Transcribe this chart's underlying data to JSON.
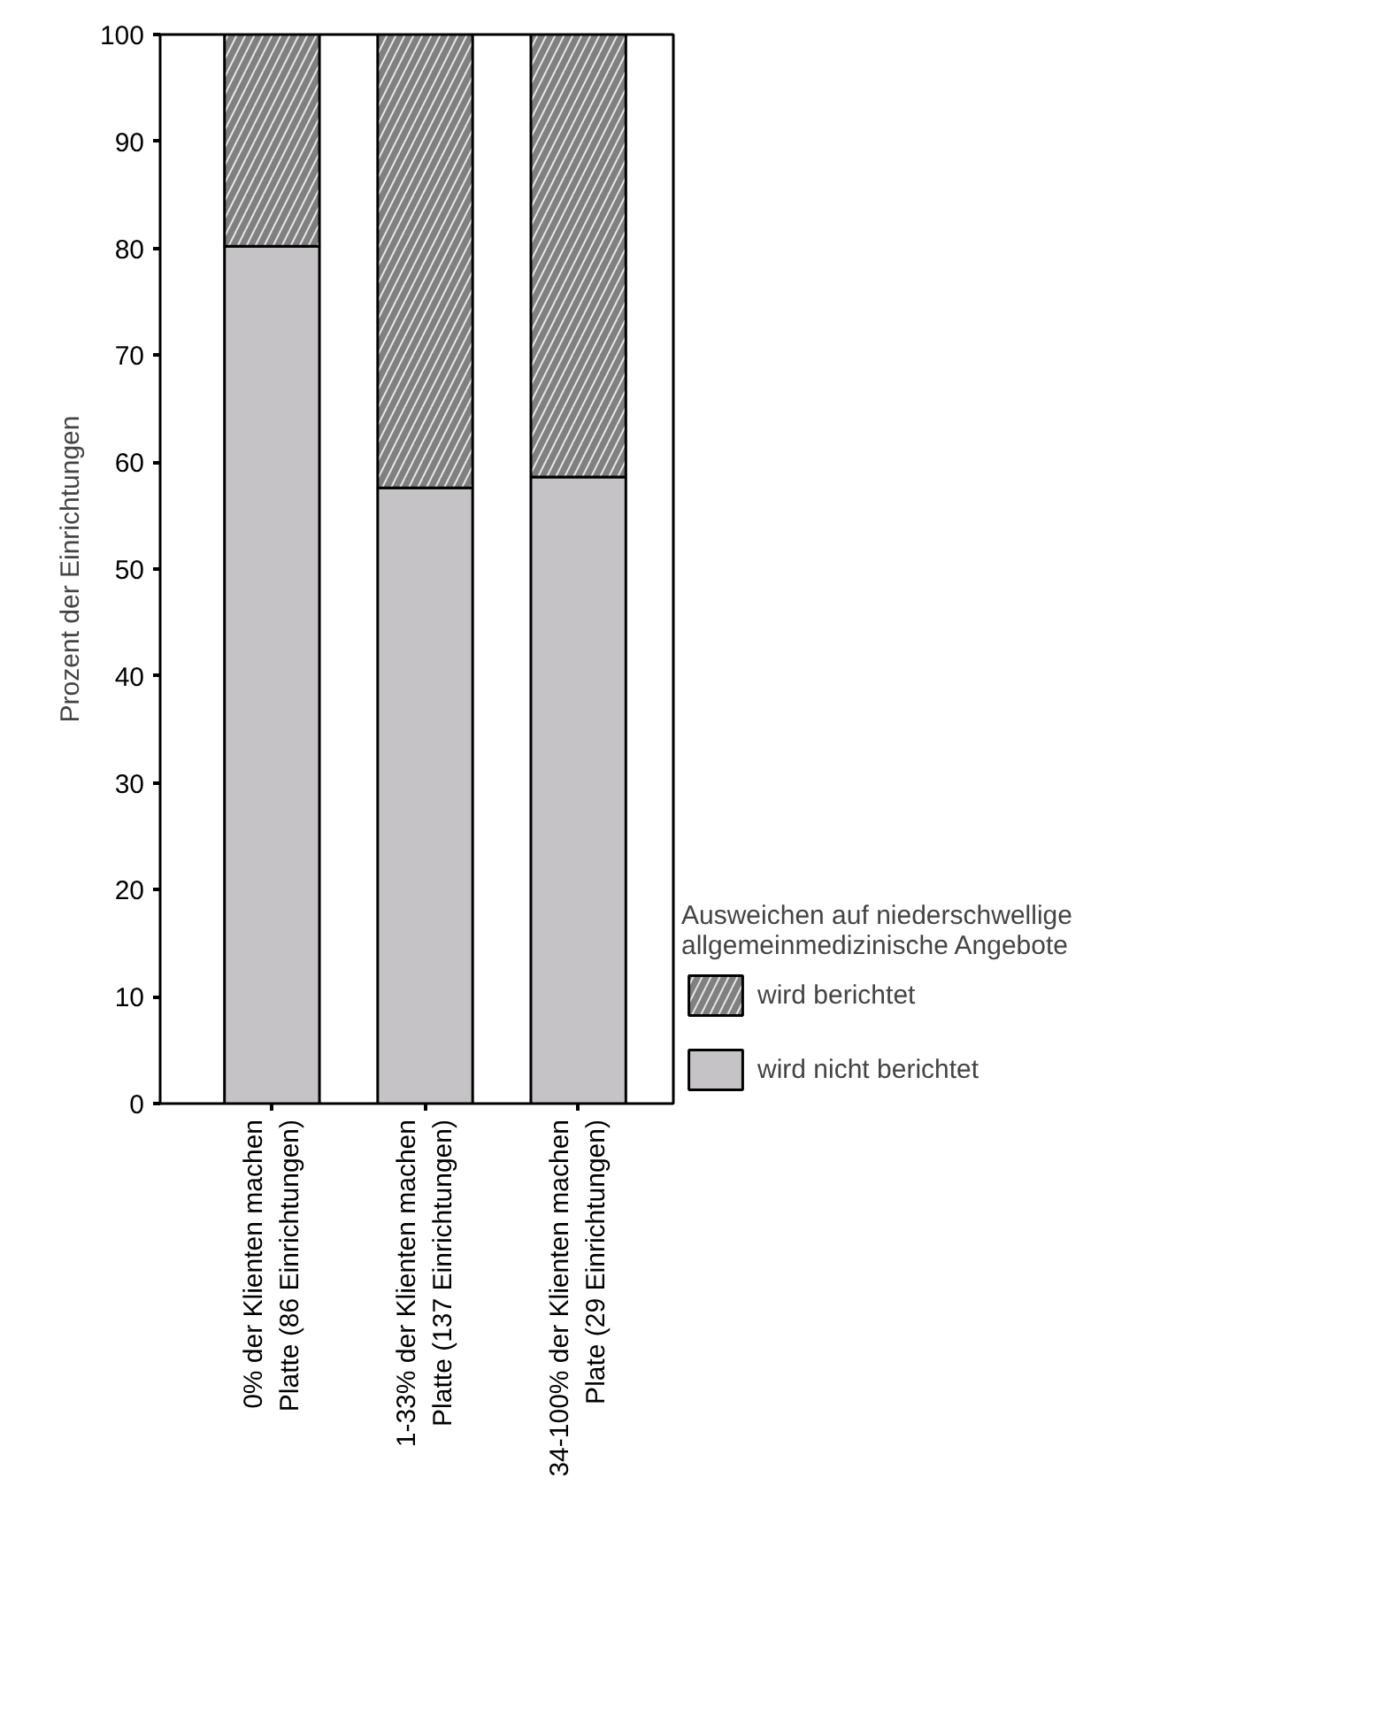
{
  "chart_data": {
    "type": "bar",
    "stacked": true,
    "ylabel": "Prozent der Einrichtungen",
    "legend_title": "Ausweichen auf niederschwellige\nallgemeinmedizinische Angebote",
    "categories": [
      "0% der Klienten machen\nPlatte (86 Einrichtungen)",
      "1-33% der Klienten machen\nPlatte (137 Einrichtungen)",
      "34-100% der Klienten machen\nPlate (29 Einrichtungen)"
    ],
    "series": [
      {
        "name": "wird nicht berichtet",
        "color": "#c6c3c6",
        "values": [
          80.2,
          57.6,
          58.6
        ]
      },
      {
        "name": "wird berichtet",
        "color": "#808080",
        "values": [
          19.8,
          42.4,
          41.4
        ]
      }
    ],
    "ylim": [
      0,
      100
    ],
    "yticks": [
      0,
      10,
      20,
      30,
      40,
      50,
      60,
      70,
      80,
      90,
      100
    ],
    "grid": false,
    "legend": "right"
  }
}
